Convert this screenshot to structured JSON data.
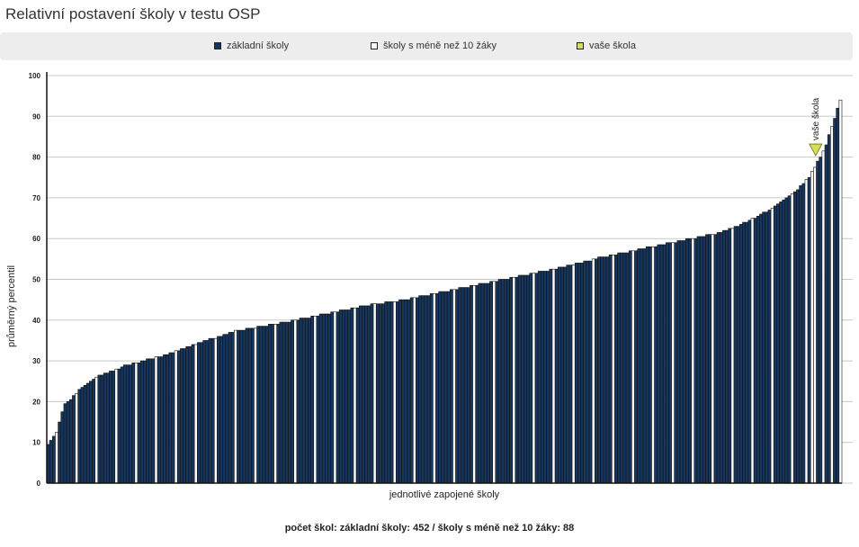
{
  "title": "Relativní postavení školy v testu OSP",
  "legend": [
    {
      "label": "základní školy",
      "color": "#17365d"
    },
    {
      "label": "školy s méně než 10 žáky",
      "color": "#ffffff"
    },
    {
      "label": "vaše škola",
      "color": "#d4de5a"
    }
  ],
  "footer": "počet škol: základní školy: 452 / školy s méně než 10 žáky: 88",
  "chart_data": {
    "type": "bar",
    "title": "Relativní postavení školy v testu OSP",
    "xlabel": "jednotlivé zapojené školy",
    "ylabel": "průměrný percentil",
    "ylim": [
      0,
      100
    ],
    "yticks": [
      0,
      10,
      20,
      30,
      40,
      50,
      60,
      70,
      80,
      90,
      100
    ],
    "grid": true,
    "legend_position": "top",
    "sorted_ascending": true,
    "counts": {
      "zakladni_skoly": 452,
      "skoly_male": 88
    },
    "series": [
      {
        "name": "základní školy",
        "color": "#17365d"
      },
      {
        "name": "školy s méně než 10 žáky",
        "color": "#ffffff"
      }
    ],
    "percentile_profile": [
      [
        0,
        9.5
      ],
      [
        0.01,
        12
      ],
      [
        0.02,
        19
      ],
      [
        0.04,
        23
      ],
      [
        0.06,
        26
      ],
      [
        0.1,
        29
      ],
      [
        0.15,
        31.5
      ],
      [
        0.2,
        35
      ],
      [
        0.24,
        37.5
      ],
      [
        0.3,
        39.5
      ],
      [
        0.35,
        41.5
      ],
      [
        0.4,
        43.5
      ],
      [
        0.45,
        45
      ],
      [
        0.5,
        47
      ],
      [
        0.55,
        49
      ],
      [
        0.6,
        51
      ],
      [
        0.65,
        53
      ],
      [
        0.7,
        55.5
      ],
      [
        0.75,
        57.5
      ],
      [
        0.8,
        59.5
      ],
      [
        0.85,
        61.5
      ],
      [
        0.88,
        64
      ],
      [
        0.91,
        67
      ],
      [
        0.94,
        71
      ],
      [
        0.96,
        75
      ],
      [
        0.97,
        78.5
      ],
      [
        0.98,
        82
      ],
      [
        0.99,
        88
      ],
      [
        1.0,
        94
      ]
    ],
    "your_school": {
      "label": "vaše škola",
      "value": 81,
      "rank_fraction": 0.967
    }
  }
}
